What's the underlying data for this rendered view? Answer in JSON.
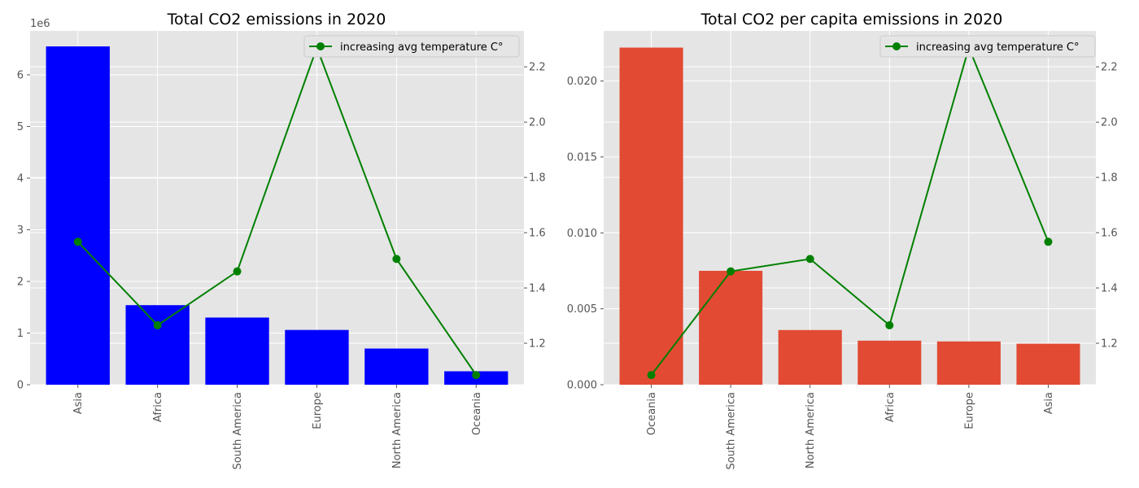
{
  "chart_data": [
    {
      "type": "bar",
      "title": "Total CO2 emissions in 2020",
      "categories": [
        "Asia",
        "Africa",
        "South America",
        "Europe",
        "North America",
        "Oceania"
      ],
      "values": [
        6550000,
        1540000,
        1300000,
        1060000,
        700000,
        260000
      ],
      "bar_color": "#0000ff",
      "ylim": [
        0,
        6850000
      ],
      "y_ticks": [
        0,
        1000000,
        2000000,
        3000000,
        4000000,
        5000000,
        6000000
      ],
      "y_tick_labels": [
        "0",
        "1",
        "2",
        "3",
        "4",
        "5",
        "6"
      ],
      "y_offset_label": "1e6",
      "secondary": {
        "type": "line",
        "name": "increasing avg temperature C°",
        "values": [
          1.567,
          1.265,
          1.46,
          2.27,
          1.505,
          1.085
        ],
        "color": "#008000",
        "ylim": [
          1.05,
          2.33
        ],
        "ticks": [
          1.2,
          1.4,
          1.6,
          1.8,
          2.0,
          2.2
        ],
        "tick_labels": [
          "1.2",
          "1.4",
          "1.6",
          "1.8",
          "2.0",
          "2.2"
        ]
      },
      "legend_position": "upper right",
      "grid": true
    },
    {
      "type": "bar",
      "title": "Total CO2 per capita emissions in 2020",
      "categories": [
        "Oceania",
        "South America",
        "North America",
        "Africa",
        "Europe",
        "Asia"
      ],
      "values": [
        0.0222,
        0.0075,
        0.0036,
        0.0029,
        0.00285,
        0.0027
      ],
      "bar_color": "#e24a33",
      "ylim": [
        0,
        0.0233
      ],
      "y_ticks": [
        0,
        0.005,
        0.01,
        0.015,
        0.02
      ],
      "y_tick_labels": [
        "0.000",
        "0.005",
        "0.010",
        "0.015",
        "0.020"
      ],
      "y_offset_label": "",
      "secondary": {
        "type": "line",
        "name": "increasing avg temperature C°",
        "values": [
          1.085,
          1.46,
          1.505,
          1.265,
          2.27,
          1.567
        ],
        "color": "#008000",
        "ylim": [
          1.05,
          2.33
        ],
        "ticks": [
          1.2,
          1.4,
          1.6,
          1.8,
          2.0,
          2.2
        ],
        "tick_labels": [
          "1.2",
          "1.4",
          "1.6",
          "1.8",
          "2.0",
          "2.2"
        ]
      },
      "legend_position": "upper right",
      "grid": true
    }
  ]
}
